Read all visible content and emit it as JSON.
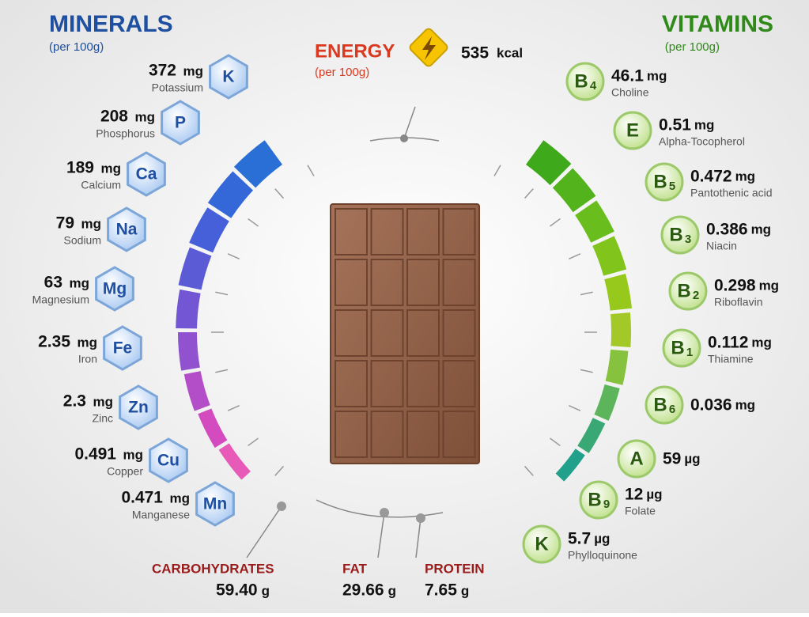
{
  "minerals": {
    "title": "MINERALS",
    "subtitle": "(per 100g)",
    "items": [
      {
        "symbol": "K",
        "amount": "372",
        "unit": "mg",
        "name": "Potassium"
      },
      {
        "symbol": "P",
        "amount": "208",
        "unit": "mg",
        "name": "Phosphorus"
      },
      {
        "symbol": "Ca",
        "amount": "189",
        "unit": "mg",
        "name": "Calcium"
      },
      {
        "symbol": "Na",
        "amount": "79",
        "unit": "mg",
        "name": "Sodium"
      },
      {
        "symbol": "Mg",
        "amount": "63",
        "unit": "mg",
        "name": "Magnesium"
      },
      {
        "symbol": "Fe",
        "amount": "2.35",
        "unit": "mg",
        "name": "Iron"
      },
      {
        "symbol": "Zn",
        "amount": "2.3",
        "unit": "mg",
        "name": "Zinc"
      },
      {
        "symbol": "Cu",
        "amount": "0.491",
        "unit": "mg",
        "name": "Copper"
      },
      {
        "symbol": "Mn",
        "amount": "0.471",
        "unit": "mg",
        "name": "Manganese"
      }
    ]
  },
  "vitamins": {
    "title": "VITAMINS",
    "subtitle": "(per 100g)",
    "items": [
      {
        "letter": "B",
        "sub": "4",
        "amount": "46.1",
        "unit": "mg",
        "name": "Choline"
      },
      {
        "letter": "E",
        "amount": "0.51",
        "unit": "mg",
        "name": "Alpha-Tocopherol"
      },
      {
        "letter": "B",
        "sub": "5",
        "amount": "0.472",
        "unit": "mg",
        "name": "Pantothenic acid"
      },
      {
        "letter": "B",
        "sub": "3",
        "amount": "0.386",
        "unit": "mg",
        "name": "Niacin"
      },
      {
        "letter": "B",
        "sub": "2",
        "amount": "0.298",
        "unit": "mg",
        "name": "Riboflavin"
      },
      {
        "letter": "B",
        "sub": "1",
        "amount": "0.112",
        "unit": "mg",
        "name": "Thiamine"
      },
      {
        "letter": "B",
        "sub": "6",
        "amount": "0.036",
        "unit": "mg"
      },
      {
        "letter": "A",
        "amount": "59",
        "unit": "µg"
      },
      {
        "letter": "B",
        "sub": "9",
        "amount": "12",
        "unit": "µg",
        "name": "Folate"
      },
      {
        "letter": "K",
        "amount": "5.7",
        "unit": "µg",
        "name": "Phylloquinone"
      }
    ]
  },
  "energy": {
    "title": "ENERGY",
    "subtitle": "(per 100g)",
    "amount": "535",
    "unit": "kcal"
  },
  "macros": [
    {
      "name": "CARBOHYDRATES",
      "amount": "59.40",
      "unit": "g"
    },
    {
      "name": "FAT",
      "amount": "29.66",
      "unit": "g"
    },
    {
      "name": "PROTEIN",
      "amount": "7.65",
      "unit": "g"
    }
  ]
}
